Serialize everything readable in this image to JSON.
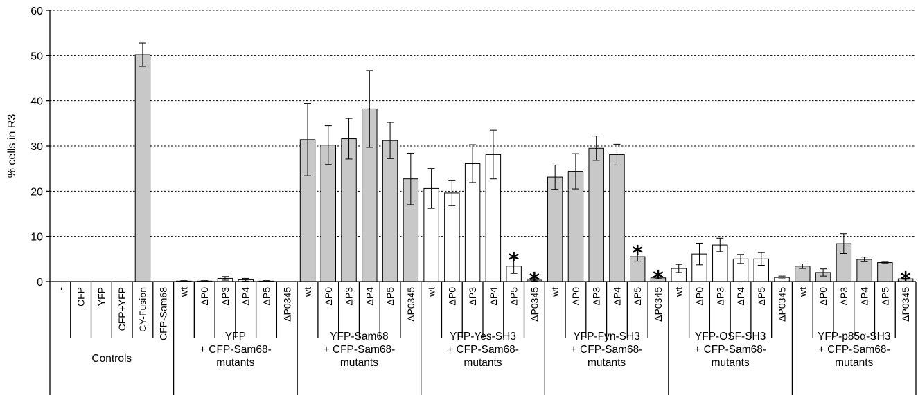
{
  "chart_data": {
    "type": "bar",
    "ylabel": "% cells in R3",
    "ylim": [
      0,
      60
    ],
    "yticks": [
      0,
      10,
      20,
      30,
      40,
      50,
      60
    ],
    "grid": "horizontal dotted",
    "colors": {
      "gray": "#c8c8c8",
      "white": "#ffffff"
    },
    "groups": [
      {
        "label": [
          "Controls"
        ],
        "bars": [
          {
            "label": "-",
            "value": 0,
            "err": 0,
            "fill": "gray"
          },
          {
            "label": "CFP",
            "value": 0,
            "err": 0,
            "fill": "gray"
          },
          {
            "label": "YFP",
            "value": 0,
            "err": 0,
            "fill": "gray"
          },
          {
            "label": "CFP+YFP",
            "value": 0,
            "err": 0,
            "fill": "gray"
          },
          {
            "label": "CY-Fusion",
            "value": 50.2,
            "err": 2.6,
            "fill": "gray"
          },
          {
            "label": "CFP-Sam68",
            "value": 0,
            "err": 0,
            "fill": "gray"
          }
        ]
      },
      {
        "label": [
          "YFP",
          "+ CFP-Sam68-",
          "mutants"
        ],
        "bars": [
          {
            "label": "wt",
            "value": 0.1,
            "err": 0.1,
            "fill": "white"
          },
          {
            "label": "ΔP0",
            "value": 0.1,
            "err": 0.1,
            "fill": "white"
          },
          {
            "label": "ΔP3",
            "value": 0.7,
            "err": 0.4,
            "fill": "white"
          },
          {
            "label": "ΔP4",
            "value": 0.4,
            "err": 0.3,
            "fill": "white"
          },
          {
            "label": "ΔP5",
            "value": 0.1,
            "err": 0.1,
            "fill": "white"
          },
          {
            "label": "ΔP0345",
            "value": 0,
            "err": 0,
            "fill": "white"
          }
        ]
      },
      {
        "label": [
          "YFP-Sam68",
          "+ CFP-Sam68-",
          "mutants"
        ],
        "bars": [
          {
            "label": "wt",
            "value": 31.4,
            "err": 8.0,
            "fill": "gray"
          },
          {
            "label": "ΔP0",
            "value": 30.2,
            "err": 4.3,
            "fill": "gray"
          },
          {
            "label": "ΔP3",
            "value": 31.6,
            "err": 4.5,
            "fill": "gray"
          },
          {
            "label": "ΔP4",
            "value": 38.2,
            "err": 8.5,
            "fill": "gray"
          },
          {
            "label": "ΔP5",
            "value": 31.2,
            "err": 4.0,
            "fill": "gray"
          },
          {
            "label": "ΔP0345",
            "value": 22.7,
            "err": 5.7,
            "fill": "gray"
          }
        ]
      },
      {
        "label": [
          "YFP-Yes-SH3",
          "+ CFP-Sam68-",
          "mutants"
        ],
        "bars": [
          {
            "label": "wt",
            "value": 20.6,
            "err": 4.4,
            "fill": "white"
          },
          {
            "label": "ΔP0",
            "value": 19.6,
            "err": 2.8,
            "fill": "white"
          },
          {
            "label": "ΔP3",
            "value": 26.1,
            "err": 4.2,
            "fill": "white"
          },
          {
            "label": "ΔP4",
            "value": 28.1,
            "err": 5.4,
            "fill": "white"
          },
          {
            "label": "ΔP5",
            "value": 3.4,
            "err": 1.6,
            "fill": "white",
            "star": "*"
          },
          {
            "label": "ΔP0345",
            "value": 0.3,
            "err": 0.2,
            "fill": "white",
            "star": "*"
          }
        ]
      },
      {
        "label": [
          "YFP-Fyn-SH3",
          "+ CFP-Sam68-",
          "mutants"
        ],
        "bars": [
          {
            "label": "wt",
            "value": 23.1,
            "err": 2.7,
            "fill": "gray"
          },
          {
            "label": "ΔP0",
            "value": 24.4,
            "err": 3.9,
            "fill": "gray"
          },
          {
            "label": "ΔP3",
            "value": 29.5,
            "err": 2.7,
            "fill": "gray"
          },
          {
            "label": "ΔP4",
            "value": 28.1,
            "err": 2.3,
            "fill": "gray"
          },
          {
            "label": "ΔP5",
            "value": 5.5,
            "err": 1.0,
            "fill": "gray",
            "star": "*"
          },
          {
            "label": "ΔP0345",
            "value": 0.8,
            "err": 0.2,
            "fill": "gray",
            "star": "*"
          }
        ]
      },
      {
        "label": [
          "YFP-OSF-SH3",
          "+ CFP-Sam68-",
          "mutants"
        ],
        "bars": [
          {
            "label": "wt",
            "value": 2.9,
            "err": 0.9,
            "fill": "white"
          },
          {
            "label": "ΔP0",
            "value": 6.1,
            "err": 2.4,
            "fill": "white"
          },
          {
            "label": "ΔP3",
            "value": 8.1,
            "err": 1.5,
            "fill": "white"
          },
          {
            "label": "ΔP4",
            "value": 5.0,
            "err": 1.0,
            "fill": "white"
          },
          {
            "label": "ΔP5",
            "value": 5.0,
            "err": 1.4,
            "fill": "white"
          },
          {
            "label": "ΔP0345",
            "value": 0.9,
            "err": 0.3,
            "fill": "white"
          }
        ]
      },
      {
        "label": [
          "YFP-p85α-SH3",
          "+ CFP-Sam68-",
          "mutants"
        ],
        "bars": [
          {
            "label": "wt",
            "value": 3.4,
            "err": 0.5,
            "fill": "gray"
          },
          {
            "label": "ΔP0",
            "value": 2.0,
            "err": 0.8,
            "fill": "gray"
          },
          {
            "label": "ΔP3",
            "value": 8.4,
            "err": 2.2,
            "fill": "gray"
          },
          {
            "label": "ΔP4",
            "value": 4.9,
            "err": 0.5,
            "fill": "gray"
          },
          {
            "label": "ΔP5",
            "value": 4.2,
            "err": 0.1,
            "fill": "gray"
          },
          {
            "label": "ΔP0345",
            "value": 0.6,
            "err": 0.1,
            "fill": "gray",
            "star": "*"
          }
        ]
      }
    ]
  }
}
